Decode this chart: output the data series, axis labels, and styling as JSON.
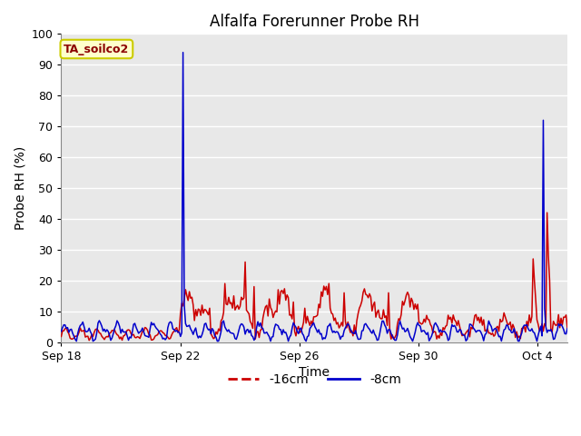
{
  "title": "Alfalfa Forerunner Probe RH",
  "xlabel": "Time",
  "ylabel": "Probe RH (%)",
  "ylim": [
    0,
    100
  ],
  "xlim_start": 0,
  "xlim_end": 17,
  "xtick_positions": [
    0,
    4,
    8,
    12,
    16
  ],
  "xtick_labels": [
    "Sep 18",
    "Sep 22",
    "Sep 26",
    "Sep 30",
    "Oct 4"
  ],
  "ytick_positions": [
    0,
    10,
    20,
    30,
    40,
    50,
    60,
    70,
    80,
    90,
    100
  ],
  "fig_bg_color": "#ffffff",
  "plot_bg_color": "#e8e8e8",
  "grid_color": "#ffffff",
  "legend_label_red": "-16cm",
  "legend_label_blue": "-8cm",
  "line_color_red": "#cc0000",
  "line_color_blue": "#0000cc",
  "annotation_text": "TA_soilco2",
  "annotation_bg": "#ffffcc",
  "annotation_border": "#cccc00",
  "title_fontsize": 12,
  "axis_label_fontsize": 10,
  "tick_fontsize": 9
}
